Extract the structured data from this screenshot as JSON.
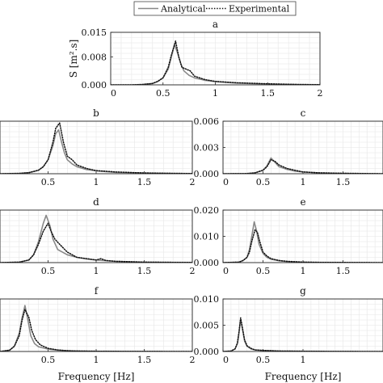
{
  "legend": {
    "entries": [
      {
        "label": "Analytical",
        "style": "solid"
      },
      {
        "label": "Experimental",
        "style": "dotted"
      }
    ],
    "placement": "top-center"
  },
  "colors": {
    "analytical": "#888888",
    "experimental": "#111111",
    "grid": "#e6e6e6",
    "axis": "#222222"
  },
  "chart_data": [
    {
      "id": "a",
      "type": "line",
      "title": "a",
      "xlabel": "",
      "ylabel": "S [m².s]",
      "xlim": [
        0,
        2
      ],
      "ylim": [
        0,
        0.015
      ],
      "xticks": [
        0,
        0.5,
        1,
        1.5,
        2
      ],
      "xtick_labels": [
        "0",
        "0.5",
        "1",
        "1.5",
        "2"
      ],
      "yticks": [
        0,
        0.008,
        0.015
      ],
      "ytick_labels": [
        "0.000",
        "0.008",
        "0.015"
      ],
      "grid": true,
      "series": [
        {
          "name": "Analytical",
          "style": "solid",
          "x": [
            0,
            0.2,
            0.3,
            0.4,
            0.45,
            0.5,
            0.55,
            0.58,
            0.61,
            0.64,
            0.67,
            0.7,
            0.75,
            0.8,
            0.9,
            1.0,
            1.2,
            1.5,
            1.8,
            2.0
          ],
          "y": [
            0,
            0,
            0.0001,
            0.0004,
            0.001,
            0.002,
            0.0045,
            0.008,
            0.0115,
            0.009,
            0.006,
            0.004,
            0.0027,
            0.002,
            0.0013,
            0.0009,
            0.0005,
            0.0002,
            0.0001,
            5e-05
          ]
        },
        {
          "name": "Experimental",
          "style": "dotted",
          "x": [
            0,
            0.2,
            0.3,
            0.4,
            0.45,
            0.5,
            0.55,
            0.58,
            0.62,
            0.65,
            0.68,
            0.72,
            0.76,
            0.8,
            0.9,
            1.0,
            1.2,
            1.5,
            1.8,
            2.0
          ],
          "y": [
            0,
            0,
            0.0001,
            0.0004,
            0.001,
            0.002,
            0.005,
            0.0085,
            0.0125,
            0.008,
            0.005,
            0.0045,
            0.004,
            0.0025,
            0.0015,
            0.001,
            0.0006,
            0.0003,
            0.0001,
            5e-05
          ]
        }
      ]
    },
    {
      "id": "b",
      "type": "line",
      "title": "b",
      "xlabel": "",
      "ylabel": "",
      "xlim": [
        0,
        2
      ],
      "ylim": [
        0,
        0.015
      ],
      "xticks": [
        0.5,
        1,
        1.5,
        2
      ],
      "xtick_labels": [
        "0.5",
        "1",
        "1.5",
        "2"
      ],
      "yticks": [],
      "ytick_labels": [],
      "grid": true,
      "series": [
        {
          "name": "Analytical",
          "style": "solid",
          "x": [
            0,
            0.2,
            0.3,
            0.4,
            0.45,
            0.5,
            0.55,
            0.58,
            0.61,
            0.64,
            0.67,
            0.7,
            0.75,
            0.8,
            0.9,
            1.0,
            1.2,
            1.5,
            1.8,
            2.0
          ],
          "y": [
            0,
            0.0001,
            0.0003,
            0.001,
            0.002,
            0.004,
            0.008,
            0.0115,
            0.0125,
            0.009,
            0.006,
            0.004,
            0.0028,
            0.002,
            0.0012,
            0.0008,
            0.0004,
            0.0002,
            0.0001,
            5e-05
          ]
        },
        {
          "name": "Experimental",
          "style": "dotted",
          "x": [
            0,
            0.2,
            0.3,
            0.4,
            0.45,
            0.5,
            0.55,
            0.58,
            0.62,
            0.66,
            0.7,
            0.75,
            0.8,
            0.9,
            1.0,
            1.2,
            1.5,
            1.8,
            2.0
          ],
          "y": [
            0,
            0.0001,
            0.0003,
            0.001,
            0.002,
            0.004,
            0.009,
            0.013,
            0.0145,
            0.009,
            0.005,
            0.004,
            0.0025,
            0.0015,
            0.0009,
            0.0005,
            0.0002,
            0.0001,
            5e-05
          ]
        }
      ]
    },
    {
      "id": "c",
      "type": "line",
      "title": "c",
      "xlabel": "",
      "ylabel": "",
      "xlim": [
        0,
        2
      ],
      "ylim": [
        0,
        0.006
      ],
      "xticks": [
        0,
        0.5,
        1,
        1.5
      ],
      "xtick_labels": [
        "0",
        "0.5",
        "1",
        "1.5"
      ],
      "yticks": [
        0,
        0.003,
        0.006
      ],
      "ytick_labels": [
        "0.000",
        "0.003",
        "0.006"
      ],
      "grid": true,
      "series": [
        {
          "name": "Analytical",
          "style": "solid",
          "x": [
            0,
            0.3,
            0.4,
            0.5,
            0.55,
            0.6,
            0.65,
            0.7,
            0.8,
            0.9,
            1.0,
            1.2,
            1.5,
            1.8,
            2.0
          ],
          "y": [
            0,
            2e-05,
            0.0001,
            0.0004,
            0.0009,
            0.0018,
            0.0013,
            0.0008,
            0.0005,
            0.0003,
            0.0002,
            0.0001,
            5e-05,
            2e-05,
            0
          ]
        },
        {
          "name": "Experimental",
          "style": "dotted",
          "x": [
            0,
            0.3,
            0.4,
            0.5,
            0.55,
            0.6,
            0.65,
            0.7,
            0.8,
            0.9,
            1.0,
            1.2,
            1.5,
            1.8,
            2.0
          ],
          "y": [
            0,
            2e-05,
            0.0001,
            0.0004,
            0.0008,
            0.0016,
            0.0014,
            0.001,
            0.0006,
            0.0004,
            0.0002,
            0.0001,
            5e-05,
            2e-05,
            0
          ]
        }
      ]
    },
    {
      "id": "d",
      "type": "line",
      "title": "d",
      "xlabel": "",
      "ylabel": "",
      "xlim": [
        0,
        2
      ],
      "ylim": [
        0,
        0.02
      ],
      "xticks": [
        0.5,
        1,
        1.5,
        2
      ],
      "xtick_labels": [
        "0.5",
        "1",
        "1.5",
        "2"
      ],
      "yticks": [],
      "ytick_labels": [],
      "grid": true,
      "series": [
        {
          "name": "Analytical",
          "style": "solid",
          "x": [
            0,
            0.2,
            0.3,
            0.35,
            0.4,
            0.45,
            0.48,
            0.52,
            0.55,
            0.6,
            0.7,
            0.8,
            0.9,
            1.0,
            1.2,
            1.5,
            1.8,
            2.0
          ],
          "y": [
            0,
            0.0002,
            0.001,
            0.003,
            0.008,
            0.015,
            0.018,
            0.014,
            0.009,
            0.005,
            0.003,
            0.002,
            0.0014,
            0.001,
            0.0005,
            0.0002,
            0.0001,
            5e-05
          ]
        },
        {
          "name": "Experimental",
          "style": "dotted",
          "x": [
            0,
            0.2,
            0.3,
            0.35,
            0.4,
            0.45,
            0.5,
            0.53,
            0.57,
            0.62,
            0.7,
            0.8,
            0.9,
            1.0,
            1.05,
            1.1,
            1.2,
            1.5,
            1.8,
            2.0
          ],
          "y": [
            0,
            0.0002,
            0.001,
            0.003,
            0.007,
            0.012,
            0.015,
            0.012,
            0.009,
            0.007,
            0.004,
            0.002,
            0.0015,
            0.001,
            0.0015,
            0.0008,
            0.0005,
            0.0002,
            0.0001,
            5e-05
          ]
        }
      ]
    },
    {
      "id": "e",
      "type": "line",
      "title": "e",
      "xlabel": "",
      "ylabel": "",
      "xlim": [
        0,
        2
      ],
      "ylim": [
        0,
        0.02
      ],
      "xticks": [
        0,
        0.5,
        1,
        1.5
      ],
      "xtick_labels": [
        "0",
        "0.5",
        "1",
        "1.5"
      ],
      "yticks": [
        0,
        0.01,
        0.02
      ],
      "ytick_labels": [
        "0.000",
        "0.010",
        "0.020"
      ],
      "grid": true,
      "series": [
        {
          "name": "Analytical",
          "style": "solid",
          "x": [
            0,
            0.2,
            0.25,
            0.3,
            0.33,
            0.36,
            0.39,
            0.42,
            0.45,
            0.5,
            0.55,
            0.6,
            0.7,
            0.8,
            1.0,
            1.2,
            1.5,
            2.0
          ],
          "y": [
            0,
            0.0002,
            0.0008,
            0.002,
            0.005,
            0.01,
            0.0155,
            0.012,
            0.007,
            0.0035,
            0.002,
            0.0013,
            0.0007,
            0.0004,
            0.0002,
            0.0001,
            5e-05,
            0
          ]
        },
        {
          "name": "Experimental",
          "style": "dotted",
          "x": [
            0,
            0.2,
            0.25,
            0.3,
            0.33,
            0.36,
            0.4,
            0.43,
            0.46,
            0.5,
            0.55,
            0.6,
            0.7,
            0.8,
            1.0,
            1.2,
            1.5,
            2.0
          ],
          "y": [
            0,
            0.0002,
            0.0008,
            0.002,
            0.004,
            0.008,
            0.0125,
            0.0115,
            0.008,
            0.004,
            0.0025,
            0.0015,
            0.0008,
            0.0005,
            0.0002,
            0.0001,
            5e-05,
            0
          ]
        }
      ]
    },
    {
      "id": "f",
      "type": "line",
      "title": "f",
      "xlabel": "Frequency [Hz]",
      "ylabel": "",
      "xlim": [
        0,
        2
      ],
      "ylim": [
        0,
        0.02
      ],
      "xticks": [
        0.5,
        1,
        1.5,
        2
      ],
      "xtick_labels": [
        "0.5",
        "1",
        "1.5",
        "2"
      ],
      "yticks": [],
      "ytick_labels": [],
      "grid": true,
      "series": [
        {
          "name": "Analytical",
          "style": "solid",
          "x": [
            0,
            0.1,
            0.15,
            0.2,
            0.23,
            0.26,
            0.29,
            0.32,
            0.36,
            0.4,
            0.5,
            0.6,
            0.7,
            0.8,
            1.0,
            1.2,
            1.5,
            2.0
          ],
          "y": [
            0,
            0.0005,
            0.002,
            0.007,
            0.013,
            0.0175,
            0.012,
            0.006,
            0.003,
            0.0018,
            0.0009,
            0.0005,
            0.0003,
            0.0002,
            0.0001,
            5e-05,
            2e-05,
            0
          ]
        },
        {
          "name": "Experimental",
          "style": "dotted",
          "x": [
            0,
            0.1,
            0.15,
            0.2,
            0.23,
            0.26,
            0.3,
            0.33,
            0.37,
            0.42,
            0.5,
            0.6,
            0.7,
            0.8,
            1.0,
            1.2,
            1.5,
            2.0
          ],
          "y": [
            0,
            0.0005,
            0.002,
            0.006,
            0.012,
            0.016,
            0.013,
            0.008,
            0.0045,
            0.0025,
            0.0012,
            0.0006,
            0.0003,
            0.0002,
            0.0001,
            5e-05,
            2e-05,
            0
          ]
        }
      ]
    },
    {
      "id": "g",
      "type": "line",
      "title": "g",
      "xlabel": "Frequency [Hz]",
      "ylabel": "",
      "xlim": [
        0,
        2
      ],
      "ylim": [
        0,
        0.01
      ],
      "xticks": [
        0,
        0.5,
        1
      ],
      "xtick_labels": [
        "0",
        "0.5",
        "1"
      ],
      "yticks": [
        0,
        0.005,
        0.01
      ],
      "ytick_labels": [
        "0.000",
        "0.005",
        "0.010"
      ],
      "grid": true,
      "series": [
        {
          "name": "Analytical",
          "style": "solid",
          "x": [
            0,
            0.1,
            0.15,
            0.18,
            0.2,
            0.22,
            0.24,
            0.27,
            0.3,
            0.35,
            0.4,
            0.5,
            0.7,
            1.0,
            1.5,
            2.0
          ],
          "y": [
            0,
            0.0001,
            0.0005,
            0.0015,
            0.0035,
            0.006,
            0.0045,
            0.002,
            0.001,
            0.0005,
            0.0003,
            0.0002,
            0.0001,
            5e-05,
            2e-05,
            0
          ]
        },
        {
          "name": "Experimental",
          "style": "dotted",
          "x": [
            0,
            0.1,
            0.15,
            0.18,
            0.2,
            0.22,
            0.24,
            0.27,
            0.3,
            0.35,
            0.4,
            0.5,
            0.7,
            1.0,
            1.5,
            2.0
          ],
          "y": [
            0,
            0.0001,
            0.0005,
            0.0016,
            0.0038,
            0.0064,
            0.0047,
            0.0022,
            0.0011,
            0.0006,
            0.0003,
            0.0002,
            0.0001,
            5e-05,
            2e-05,
            0
          ]
        }
      ]
    }
  ]
}
